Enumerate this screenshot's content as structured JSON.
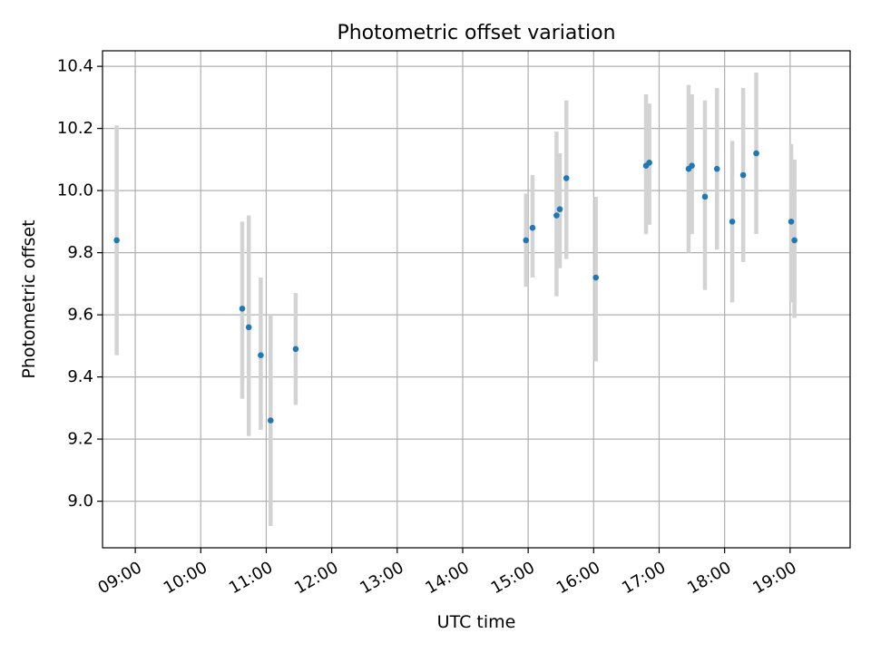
{
  "chart_data": {
    "type": "scatter",
    "title": "Photometric offset variation",
    "xlabel": "UTC time",
    "ylabel": "Photometric offset",
    "x_axis_type": "time",
    "xlim": [
      "08:30",
      "19:55"
    ],
    "ylim": [
      8.85,
      10.45
    ],
    "x_ticks": [
      "09:00",
      "10:00",
      "11:00",
      "12:00",
      "13:00",
      "14:00",
      "15:00",
      "16:00",
      "17:00",
      "18:00",
      "19:00"
    ],
    "y_ticks": [
      "9.0",
      "9.2",
      "9.4",
      "9.6",
      "9.8",
      "10.0",
      "10.2",
      "10.4"
    ],
    "grid": true,
    "colors": {
      "marker": "#1f77b4",
      "errorbar": "#d3d3d3",
      "grid": "#b0b0b0"
    },
    "points": [
      {
        "x": "08:43",
        "y": 9.84,
        "ylow": 9.47,
        "yhigh": 10.21
      },
      {
        "x": "10:38",
        "y": 9.62,
        "ylow": 9.33,
        "yhigh": 9.9
      },
      {
        "x": "10:44",
        "y": 9.56,
        "ylow": 9.21,
        "yhigh": 9.92
      },
      {
        "x": "10:55",
        "y": 9.47,
        "ylow": 9.23,
        "yhigh": 9.72
      },
      {
        "x": "11:04",
        "y": 9.26,
        "ylow": 8.92,
        "yhigh": 9.6
      },
      {
        "x": "11:27",
        "y": 9.49,
        "ylow": 9.31,
        "yhigh": 9.67
      },
      {
        "x": "14:58",
        "y": 9.84,
        "ylow": 9.69,
        "yhigh": 9.99
      },
      {
        "x": "15:04",
        "y": 9.88,
        "ylow": 9.72,
        "yhigh": 10.05
      },
      {
        "x": "15:26",
        "y": 9.92,
        "ylow": 9.66,
        "yhigh": 10.19
      },
      {
        "x": "15:29",
        "y": 9.94,
        "ylow": 9.75,
        "yhigh": 10.12
      },
      {
        "x": "15:35",
        "y": 10.04,
        "ylow": 9.78,
        "yhigh": 10.29
      },
      {
        "x": "16:02",
        "y": 9.72,
        "ylow": 9.45,
        "yhigh": 9.98
      },
      {
        "x": "16:48",
        "y": 10.08,
        "ylow": 9.86,
        "yhigh": 10.31
      },
      {
        "x": "16:51",
        "y": 10.09,
        "ylow": 9.89,
        "yhigh": 10.28
      },
      {
        "x": "17:27",
        "y": 10.07,
        "ylow": 9.8,
        "yhigh": 10.34
      },
      {
        "x": "17:30",
        "y": 10.08,
        "ylow": 9.86,
        "yhigh": 10.31
      },
      {
        "x": "17:42",
        "y": 9.98,
        "ylow": 9.68,
        "yhigh": 10.29
      },
      {
        "x": "17:53",
        "y": 10.07,
        "ylow": 9.81,
        "yhigh": 10.33
      },
      {
        "x": "18:07",
        "y": 9.9,
        "ylow": 9.64,
        "yhigh": 10.16
      },
      {
        "x": "18:17",
        "y": 10.05,
        "ylow": 9.77,
        "yhigh": 10.33
      },
      {
        "x": "18:29",
        "y": 10.12,
        "ylow": 9.86,
        "yhigh": 10.38
      },
      {
        "x": "19:01",
        "y": 9.9,
        "ylow": 9.64,
        "yhigh": 10.15
      },
      {
        "x": "19:04",
        "y": 9.84,
        "ylow": 9.59,
        "yhigh": 10.1
      }
    ]
  }
}
